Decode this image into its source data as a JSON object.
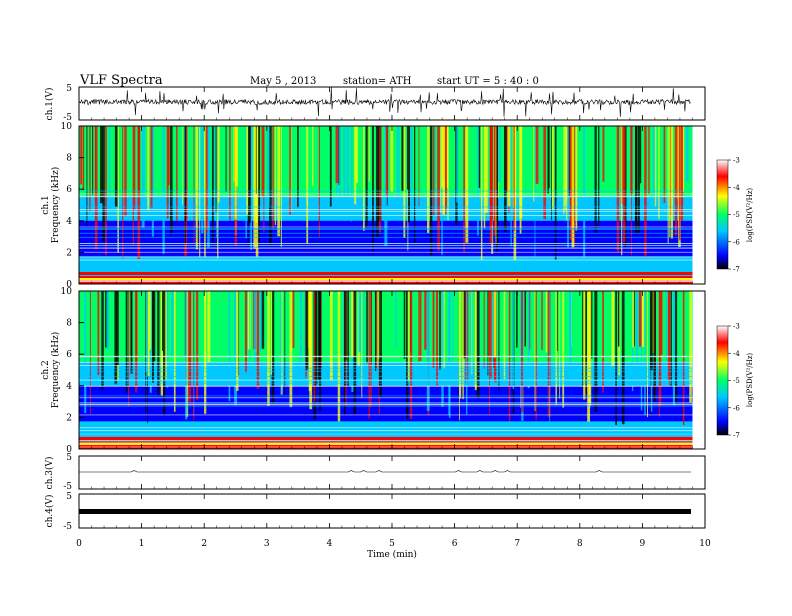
{
  "header": {
    "title": "VLF  Spectra",
    "date": "May 5  , 2013",
    "station": "station= ATH",
    "start": "start  UT  =    5  : 40 : 0"
  },
  "colors": {
    "trace": "#000000",
    "colormap": [
      "#000000",
      "#0000ff",
      "#00c8ff",
      "#00ff66",
      "#ffff00",
      "#ff0000",
      "#ffffff"
    ]
  },
  "chart_data": [
    {
      "type": "line",
      "title": "ch.1 waveform",
      "ylabel": "ch.1(V)",
      "ylim": [
        -5,
        5
      ],
      "yticks": [
        "5",
        "-5"
      ],
      "xlim": [
        0,
        10
      ]
    },
    {
      "type": "heatmap",
      "title": "ch.1 spectrogram",
      "ylabel": "ch.1 Frequency  (kHz)",
      "ylabel_line1": "ch.1",
      "ylabel_line2": "Frequency  (kHz)",
      "ylim": [
        0,
        10
      ],
      "yticks": [
        "10",
        "8",
        "6",
        "4",
        "2",
        "0"
      ],
      "xlim": [
        0,
        9.8
      ],
      "colorbar": {
        "label": "log(PSD(V²/Hz)",
        "range": [
          -7,
          -3
        ],
        "ticks": [
          "-3",
          "-4",
          "-5",
          "-6",
          "-7"
        ]
      }
    },
    {
      "type": "heatmap",
      "title": "ch.2 spectrogram",
      "ylabel": "ch.2 Frequency  (kHz)",
      "ylabel_line1": "ch.2",
      "ylabel_line2": "Frequency  (kHz)",
      "ylim": [
        0,
        10
      ],
      "yticks": [
        "10",
        "8",
        "6",
        "4",
        "2",
        "0"
      ],
      "xlim": [
        0,
        9.8
      ],
      "colorbar": {
        "label": "log(PSD(V²/Hz)",
        "range": [
          -7,
          -3
        ],
        "ticks": [
          "-3",
          "-4",
          "-5",
          "-6",
          "-7"
        ]
      }
    },
    {
      "type": "line",
      "title": "ch.3 waveform",
      "ylabel": "ch.3(V)",
      "ylim": [
        -5,
        5
      ],
      "yticks": [
        "5",
        "-5"
      ],
      "xlim": [
        0,
        10
      ]
    },
    {
      "type": "line",
      "title": "ch.4 waveform",
      "ylabel": "ch.4(V)",
      "ylim": [
        -5,
        5
      ],
      "yticks": [
        "5",
        "-5"
      ],
      "xlim": [
        0,
        10
      ]
    }
  ],
  "xaxis": {
    "label": "Time  (min)",
    "ticks": [
      "0",
      "1",
      "2",
      "3",
      "4",
      "5",
      "6",
      "7",
      "8",
      "9",
      "10"
    ],
    "range": [
      0,
      10
    ]
  }
}
